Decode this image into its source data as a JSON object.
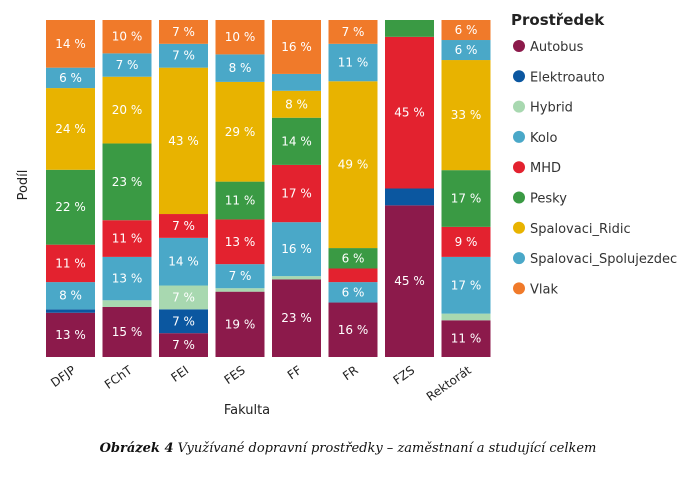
{
  "chart_data": {
    "type": "bar",
    "stacked": true,
    "xlabel": "Fakulta",
    "ylabel": "Podíl",
    "categories": [
      "DFJP",
      "FChT",
      "FEI",
      "FES",
      "FF",
      "FR",
      "FZS",
      "Rektorát"
    ],
    "legend_title": "Prostředek",
    "legend_position": "right",
    "series": [
      {
        "name": "Autobus",
        "color": "#8c1a4b",
        "values": [
          13,
          15,
          7,
          19,
          23,
          16,
          45,
          11
        ],
        "labels": [
          "13 %",
          "15 %",
          "7 %",
          "19 %",
          "23 %",
          "16 %",
          "45 %",
          "11 %"
        ]
      },
      {
        "name": "Elektroauto",
        "color": "#0b57a0",
        "values": [
          1,
          0,
          7,
          0,
          0,
          0,
          5,
          0
        ],
        "labels": [
          "",
          "",
          "7 %",
          "",
          "",
          "",
          "",
          ""
        ]
      },
      {
        "name": "Hybrid",
        "color": "#a8d8b0",
        "values": [
          0,
          2,
          7,
          1,
          1,
          0,
          0,
          2
        ],
        "labels": [
          "",
          "",
          "7 %",
          "",
          "",
          "",
          "",
          ""
        ]
      },
      {
        "name": "Kolo",
        "color": "#4aa8c8",
        "values": [
          8,
          13,
          14,
          7,
          16,
          6,
          0,
          17
        ],
        "labels": [
          "8 %",
          "13 %",
          "14 %",
          "7 %",
          "16 %",
          "6 %",
          "",
          "17 %"
        ]
      },
      {
        "name": "MHD",
        "color": "#e3222f",
        "values": [
          11,
          11,
          7,
          13,
          17,
          4,
          45,
          9
        ],
        "labels": [
          "11 %",
          "11 %",
          "7 %",
          "13 %",
          "17 %",
          "",
          "45 %",
          "9 %"
        ]
      },
      {
        "name": "Pesky",
        "color": "#3a9a44",
        "values": [
          22,
          23,
          0,
          11,
          14,
          6,
          5,
          17
        ],
        "labels": [
          "22 %",
          "23 %",
          "",
          "11 %",
          "14 %",
          "6 %",
          "",
          "17 %"
        ]
      },
      {
        "name": "Spalovaci_Ridic",
        "color": "#e8b300",
        "values": [
          24,
          20,
          43,
          29,
          8,
          49,
          0,
          33
        ],
        "labels": [
          "24 %",
          "20 %",
          "43 %",
          "29 %",
          "8 %",
          "49 %",
          "",
          "33 %"
        ]
      },
      {
        "name": "Spalovaci_Spolujezdec",
        "color": "#4aa8c8",
        "values": [
          6,
          7,
          7,
          8,
          5,
          11,
          0,
          6
        ],
        "labels": [
          "6 %",
          "7 %",
          "7 %",
          "8 %",
          "",
          "11 %",
          "",
          "6 %"
        ]
      },
      {
        "name": "Vlak",
        "color": "#f07a2a",
        "values": [
          14,
          10,
          7,
          10,
          16,
          7,
          0,
          6
        ],
        "labels": [
          "14 %",
          "10 %",
          "7 %",
          "10 %",
          "16 %",
          "7 %",
          "",
          "6 %"
        ]
      }
    ]
  },
  "caption": {
    "label": "Obrázek 4",
    "text": " Využívané dopravní prostředky – zaměstnaní a studující celkem"
  }
}
